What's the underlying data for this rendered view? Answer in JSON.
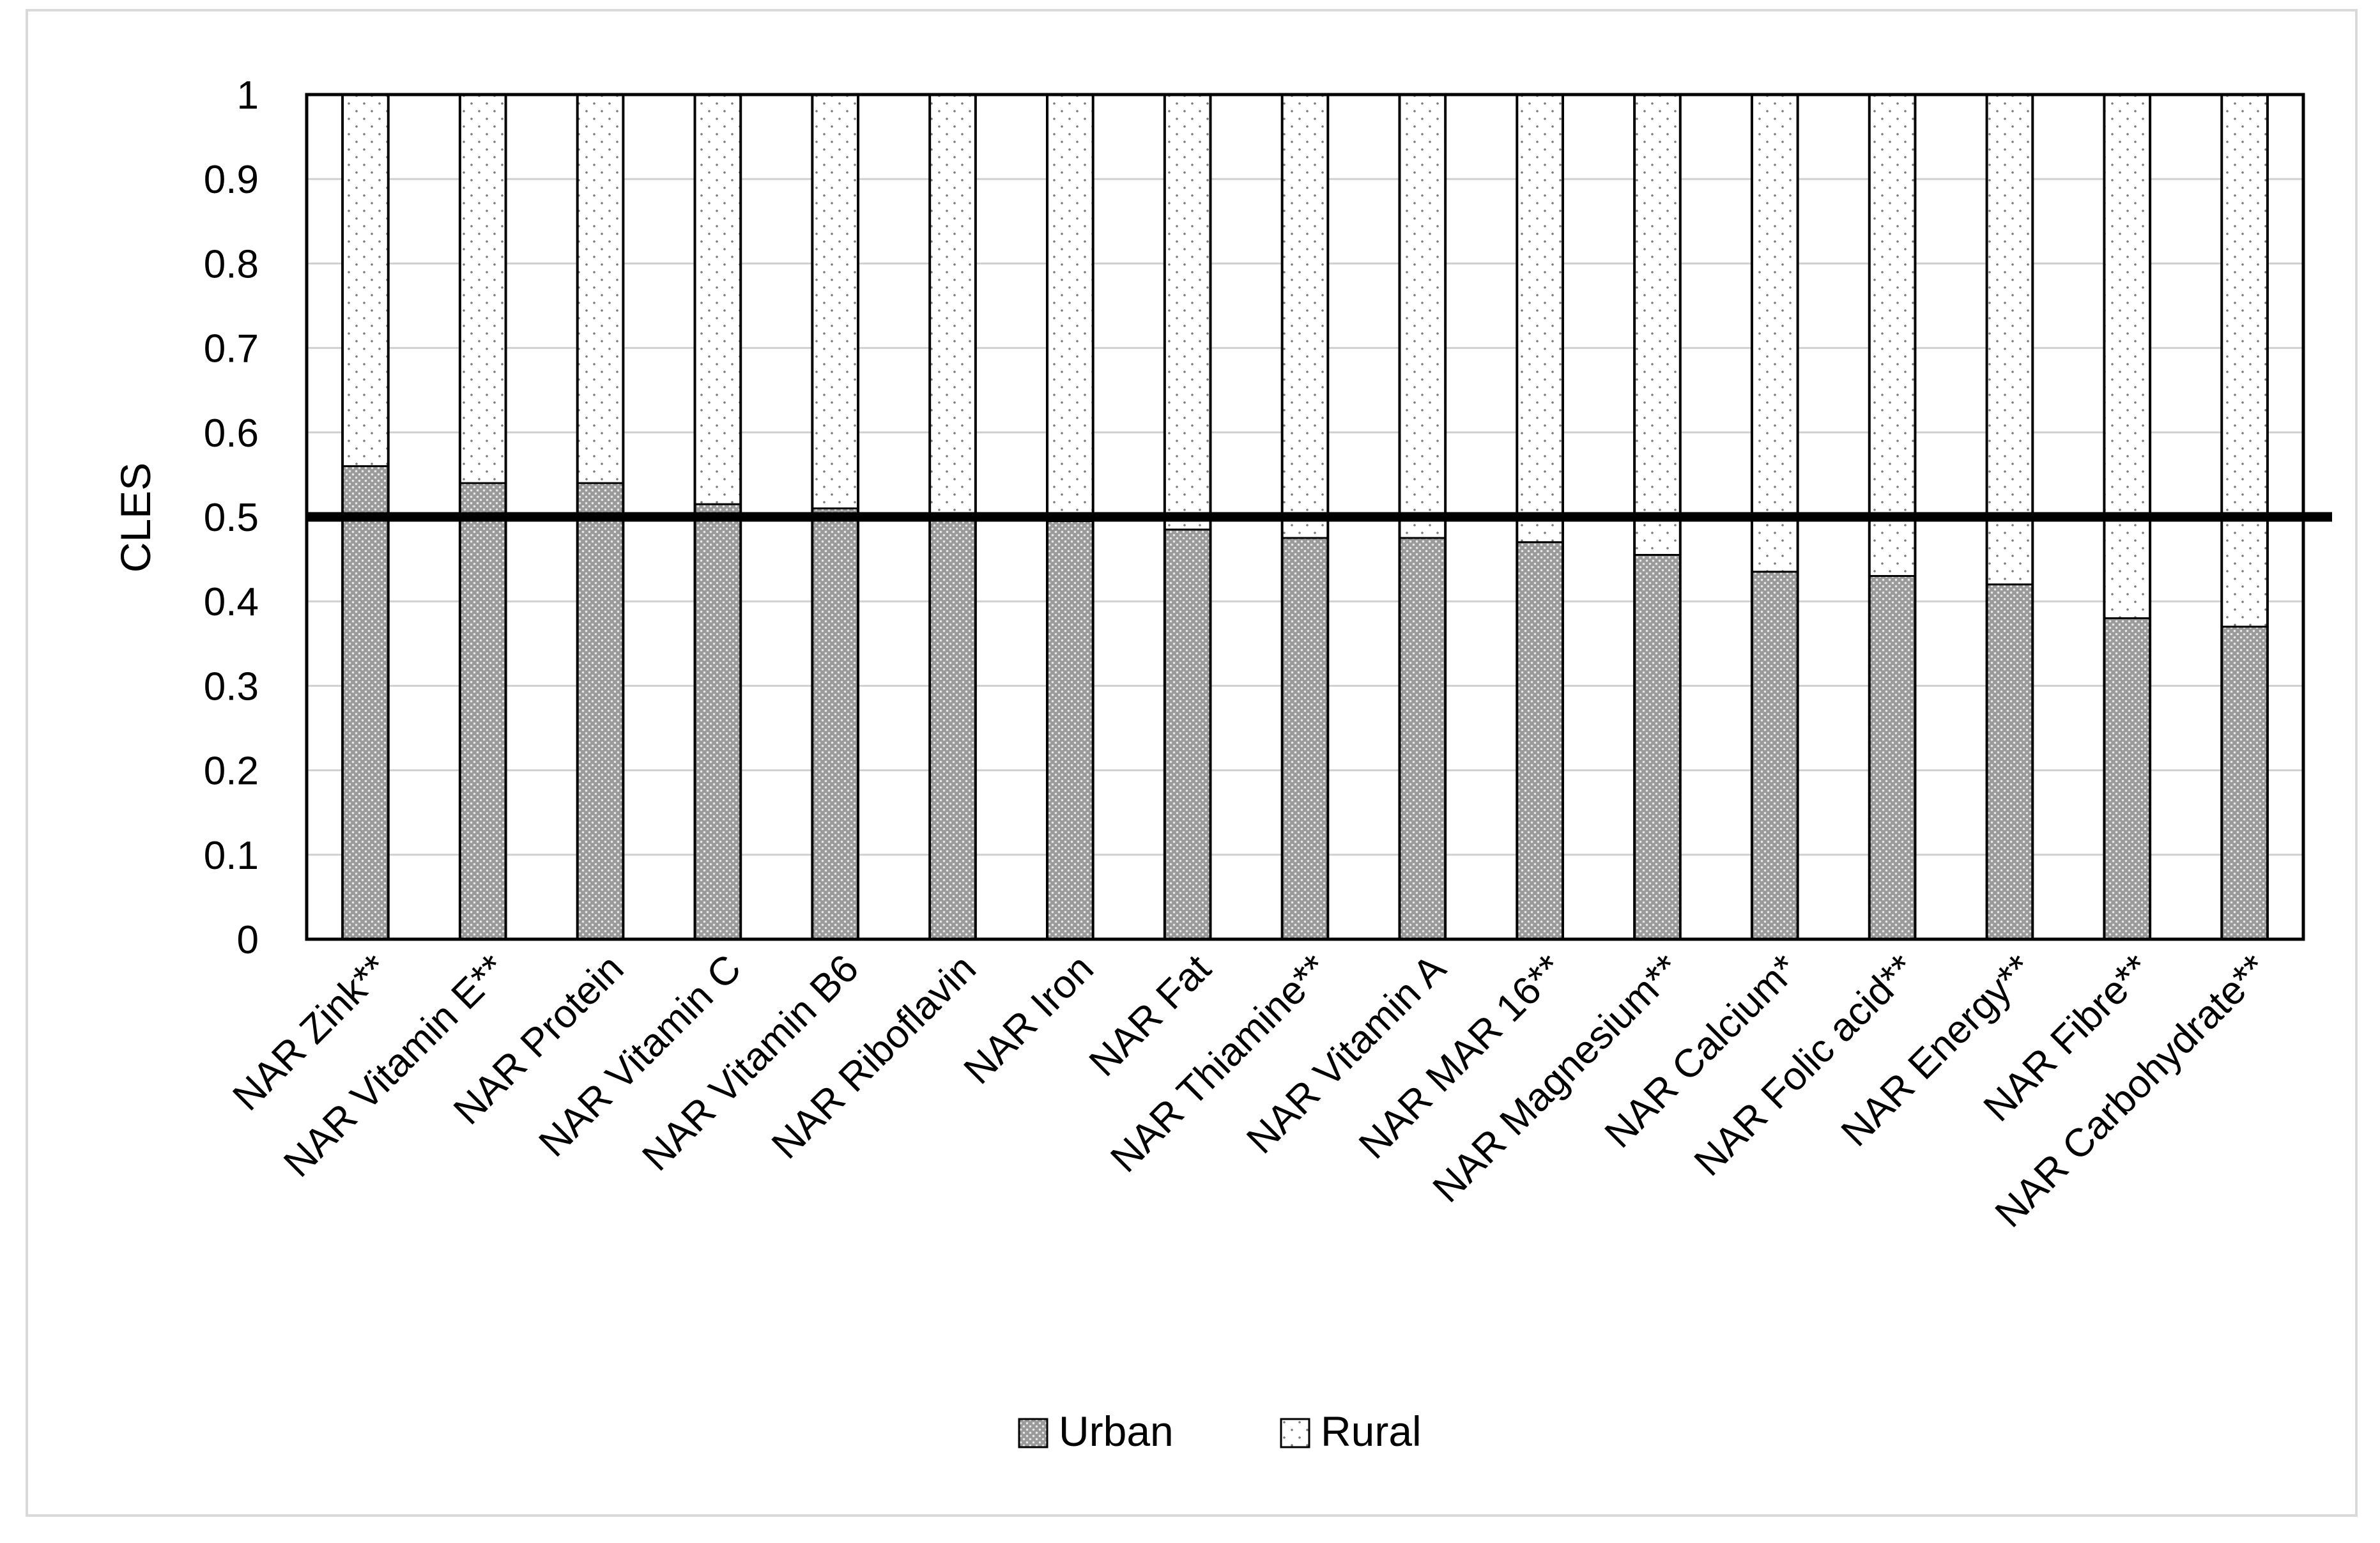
{
  "chart_data": {
    "type": "bar",
    "stacked": true,
    "title": "",
    "xlabel": "",
    "ylabel": "CLES",
    "ylim": [
      0,
      1
    ],
    "yticks": [
      0,
      0.1,
      0.2,
      0.3,
      0.4,
      0.5,
      0.6,
      0.7,
      0.8,
      0.9,
      1
    ],
    "reference_line": 0.5,
    "grid": true,
    "legend_position": "bottom",
    "categories": [
      "NAR Zink**",
      "NAR Vitamin E**",
      "NAR Protein",
      "NAR Vitamin C",
      "NAR Vitamin B6",
      "NAR Riboflavin",
      "NAR Iron",
      "NAR Fat",
      "NAR Thiamine**",
      "NAR Vitamin A",
      "NAR MAR 16**",
      "NAR Magnesium**",
      "NAR Calcium*",
      "NAR Folic acid**",
      "NAR Energy**",
      "NAR Fibre**",
      "NAR Carbohydrate**"
    ],
    "series": [
      {
        "name": "Urban",
        "color": "#a6a6a6",
        "pattern": "dense-dots",
        "values": [
          0.56,
          0.54,
          0.54,
          0.515,
          0.51,
          0.5,
          0.495,
          0.485,
          0.475,
          0.475,
          0.47,
          0.455,
          0.435,
          0.43,
          0.42,
          0.38,
          0.37
        ]
      },
      {
        "name": "Rural",
        "color": "#ffffff",
        "pattern": "sparse-dots",
        "values": [
          0.44,
          0.46,
          0.46,
          0.485,
          0.49,
          0.5,
          0.505,
          0.515,
          0.525,
          0.525,
          0.53,
          0.545,
          0.565,
          0.57,
          0.58,
          0.62,
          0.63
        ]
      }
    ]
  }
}
